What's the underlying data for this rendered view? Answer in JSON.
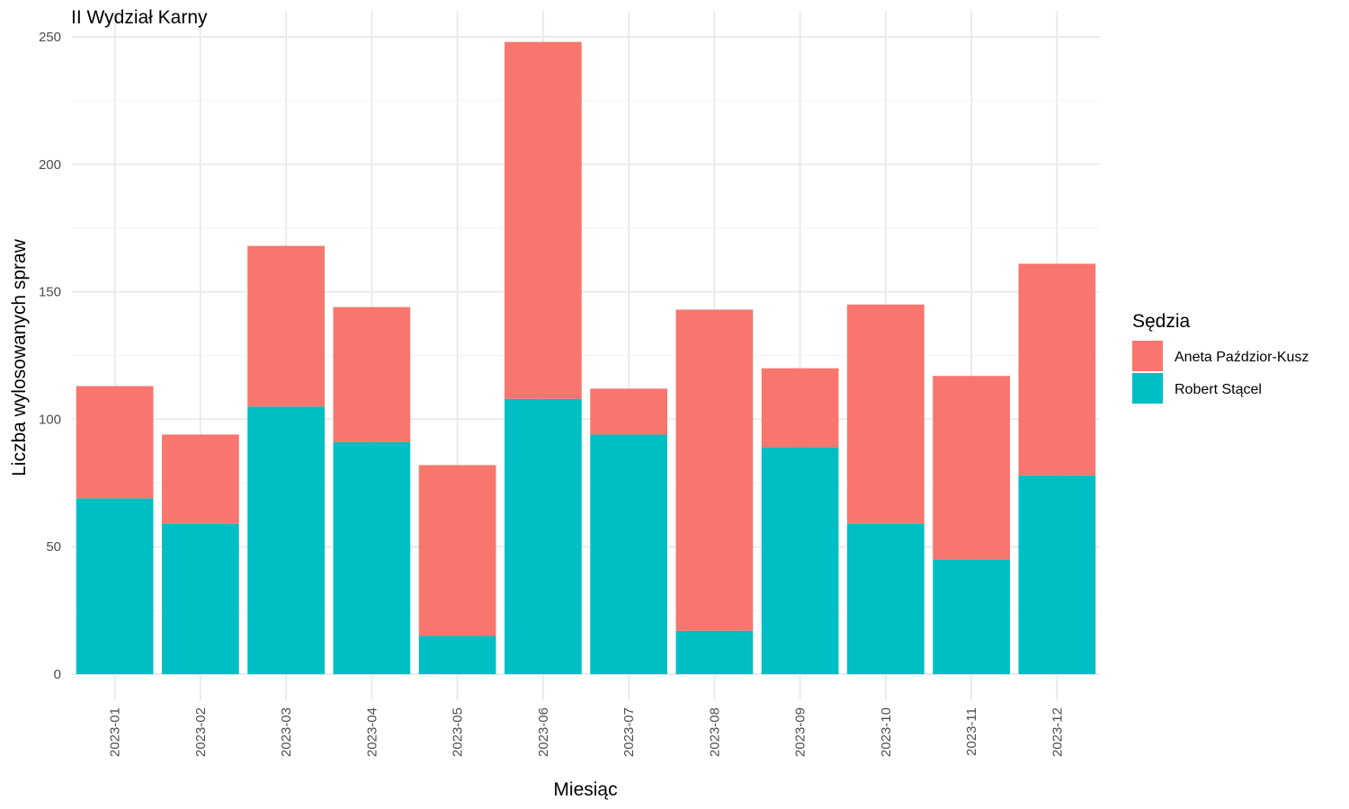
{
  "chart_data": {
    "type": "bar",
    "stacked": true,
    "title": "II Wydział Karny",
    "xlabel": "Miesiąc",
    "ylabel": "Liczba wylosowanych spraw",
    "categories": [
      "2023-01",
      "2023-02",
      "2023-03",
      "2023-04",
      "2023-05",
      "2023-06",
      "2023-07",
      "2023-08",
      "2023-09",
      "2023-10",
      "2023-11",
      "2023-12"
    ],
    "series": [
      {
        "name": "Robert Stącel",
        "color": "#00BFC4",
        "values": [
          69,
          59,
          105,
          91,
          15,
          108,
          94,
          17,
          89,
          59,
          45,
          78
        ]
      },
      {
        "name": "Aneta Paździor-Kusz",
        "color": "#F8766D",
        "values": [
          44,
          35,
          63,
          53,
          67,
          140,
          18,
          126,
          31,
          86,
          72,
          83
        ]
      }
    ],
    "ylim": [
      0,
      250
    ],
    "yticks": [
      0,
      50,
      100,
      150,
      200,
      250
    ],
    "grid": true,
    "legend": {
      "title": "Sędzia",
      "position": "right",
      "order": [
        "Aneta Paździor-Kusz",
        "Robert Stącel"
      ]
    }
  }
}
